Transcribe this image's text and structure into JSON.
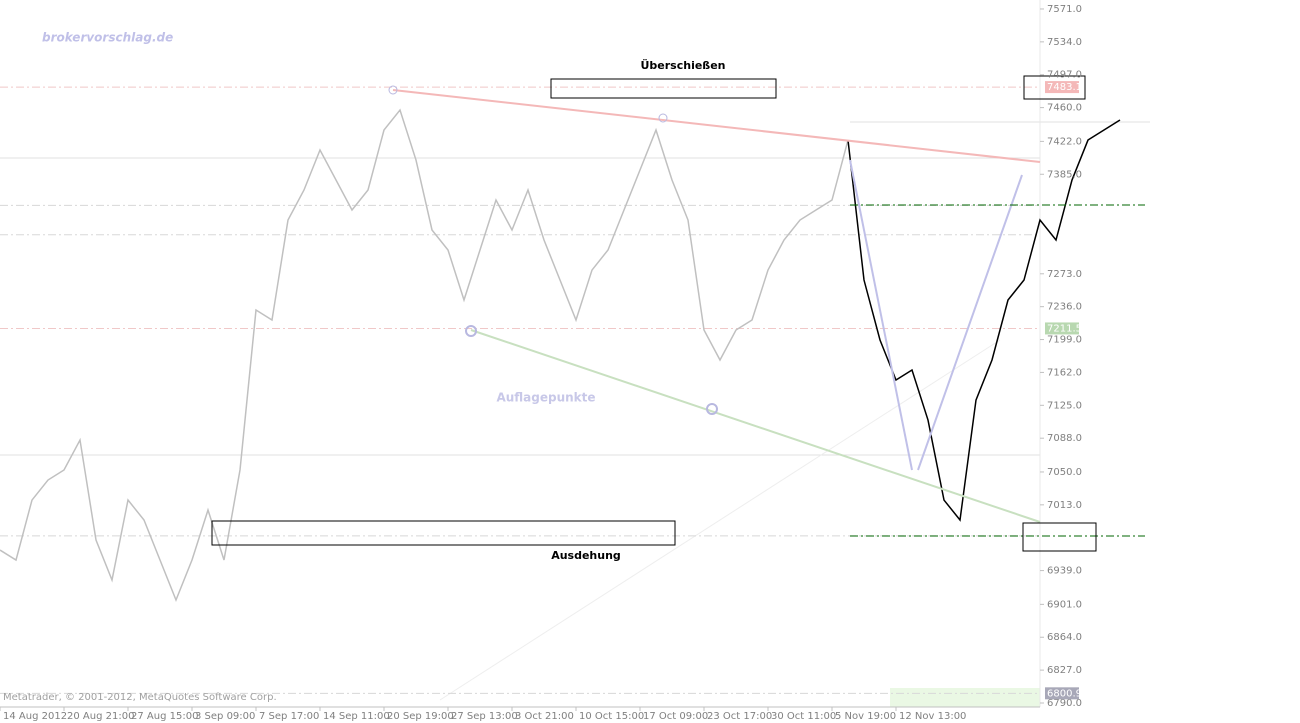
{
  "chart_data": {
    "type": "line",
    "watermark": "brokervorschlag.de",
    "copyright": "Metatrader, © 2001-2012, MetaQuotes Software Corp.",
    "annotations": [
      "Überschießen",
      "Auflagepunkte",
      "Ausdehung"
    ],
    "categories": [
      "14 Aug 2012",
      null,
      null,
      null,
      "20 Aug 21:00",
      null,
      null,
      null,
      "27 Aug 15:00",
      null,
      null,
      null,
      "3 Sep 09:00",
      null,
      null,
      null,
      "7 Sep 17:00",
      null,
      null,
      null,
      "14 Sep 11:00",
      null,
      null,
      null,
      "20 Sep 19:00",
      null,
      null,
      null,
      "27 Sep 13:00",
      null,
      null,
      null,
      "3 Oct 21:00",
      null,
      null,
      null,
      "10 Oct 15:00",
      null,
      null,
      null,
      "17 Oct 09:00",
      null,
      null,
      null,
      "23 Oct 17:00",
      null,
      null,
      null,
      "30 Oct 11:00",
      null,
      null,
      null,
      "5 Nov 19:00",
      null,
      null,
      null,
      "12 Nov 13:00",
      null,
      null,
      null,
      null,
      null,
      null,
      null,
      null,
      null,
      null,
      null,
      null,
      null,
      null
    ],
    "series": [
      {
        "color": "#c0c0c0",
        "values": [
          6962.1,
          6950.9,
          7018.4,
          7040.9,
          7052.2,
          7085.9,
          6973.4,
          6928.4,
          7018.4,
          6995.9,
          6950.9,
          6905.9,
          6950.9,
          7007.2,
          6950.9,
          7052.2,
          7232.2,
          7221.0,
          7333.5,
          7367.3,
          7412.3,
          7378.5,
          7344.8,
          7367.3,
          7434.8,
          7457.3,
          7401.0,
          7322.3,
          7299.8,
          7243.5,
          7299.8,
          7356.0,
          7322.3,
          7367.3,
          7311.0,
          7266.0,
          7221.0,
          7277.2,
          7299.8,
          7344.8,
          7389.8,
          7434.8,
          7378.5,
          7333.5,
          7209.7,
          7176.0,
          7209.7,
          7221.0,
          7277.2,
          7311.0,
          7333.5,
          7344.8,
          7356.0,
          7423.5,
          null,
          null,
          null,
          null,
          null,
          null,
          null,
          null,
          null,
          null,
          null,
          null,
          null,
          null,
          null,
          null,
          null
        ]
      },
      {
        "color": "#000000",
        "values": [
          null,
          null,
          null,
          null,
          null,
          null,
          null,
          null,
          null,
          null,
          null,
          null,
          null,
          null,
          null,
          null,
          null,
          null,
          null,
          null,
          null,
          null,
          null,
          null,
          null,
          null,
          null,
          null,
          null,
          null,
          null,
          null,
          null,
          null,
          null,
          null,
          null,
          null,
          null,
          null,
          null,
          null,
          null,
          null,
          null,
          null,
          null,
          null,
          null,
          null,
          null,
          null,
          null,
          7423.5,
          7266.0,
          7198.5,
          7153.5,
          7164.7,
          7108.4,
          7018.4,
          6995.9,
          7130.9,
          7176.0,
          7243.5,
          7266.0,
          7333.5,
          7311.0,
          7378.5,
          7423.5,
          7434.8,
          7446.1
        ]
      }
    ],
    "ylim": [
      6785.5,
      7581.1
    ],
    "yticks": [
      {
        "value": 7571,
        "label": "7571.0"
      },
      {
        "value": 7534,
        "label": "7534.0"
      },
      {
        "value": 7497,
        "label": "7497.0"
      },
      {
        "value": 7460,
        "label": "7460.0"
      },
      {
        "value": 7422,
        "label": "7422.0"
      },
      {
        "value": 7385,
        "label": "7385.0"
      },
      {
        "value": 7273,
        "label": "7273.0"
      },
      {
        "value": 7236,
        "label": "7236.0"
      },
      {
        "value": 7199,
        "label": "7199.0"
      },
      {
        "value": 7162,
        "label": "7162.0"
      },
      {
        "value": 7125,
        "label": "7125.0"
      },
      {
        "value": 7088,
        "label": "7088.0"
      },
      {
        "value": 7050,
        "label": "7050.0"
      },
      {
        "value": 7013,
        "label": "7013.0"
      },
      {
        "value": 6939,
        "label": "6939.0"
      },
      {
        "value": 6901,
        "label": "6901.0"
      },
      {
        "value": 6864,
        "label": "6864.0"
      },
      {
        "value": 6827,
        "label": "6827.0"
      },
      {
        "value": 6790,
        "label": "6790.0"
      }
    ],
    "levels": [
      {
        "value": 7483.1,
        "color": "#f0c8c8"
      },
      {
        "value": 7350,
        "color": "#d8d8d8"
      },
      {
        "value": 7317,
        "color": "#d8d8d8"
      },
      {
        "value": 7211.5,
        "color": "#f0c8c8"
      },
      {
        "value": 6978,
        "color": "#d8d8d8"
      },
      {
        "value": 6800.9,
        "color": "#d8d8d8"
      }
    ],
    "price_tags": [
      {
        "value": 7483.1,
        "color": "#f4b8b8"
      },
      {
        "value": 7211.5,
        "color": "#b8d8b0"
      },
      {
        "value": 6800.9,
        "color": "#a8a8b8"
      }
    ]
  }
}
